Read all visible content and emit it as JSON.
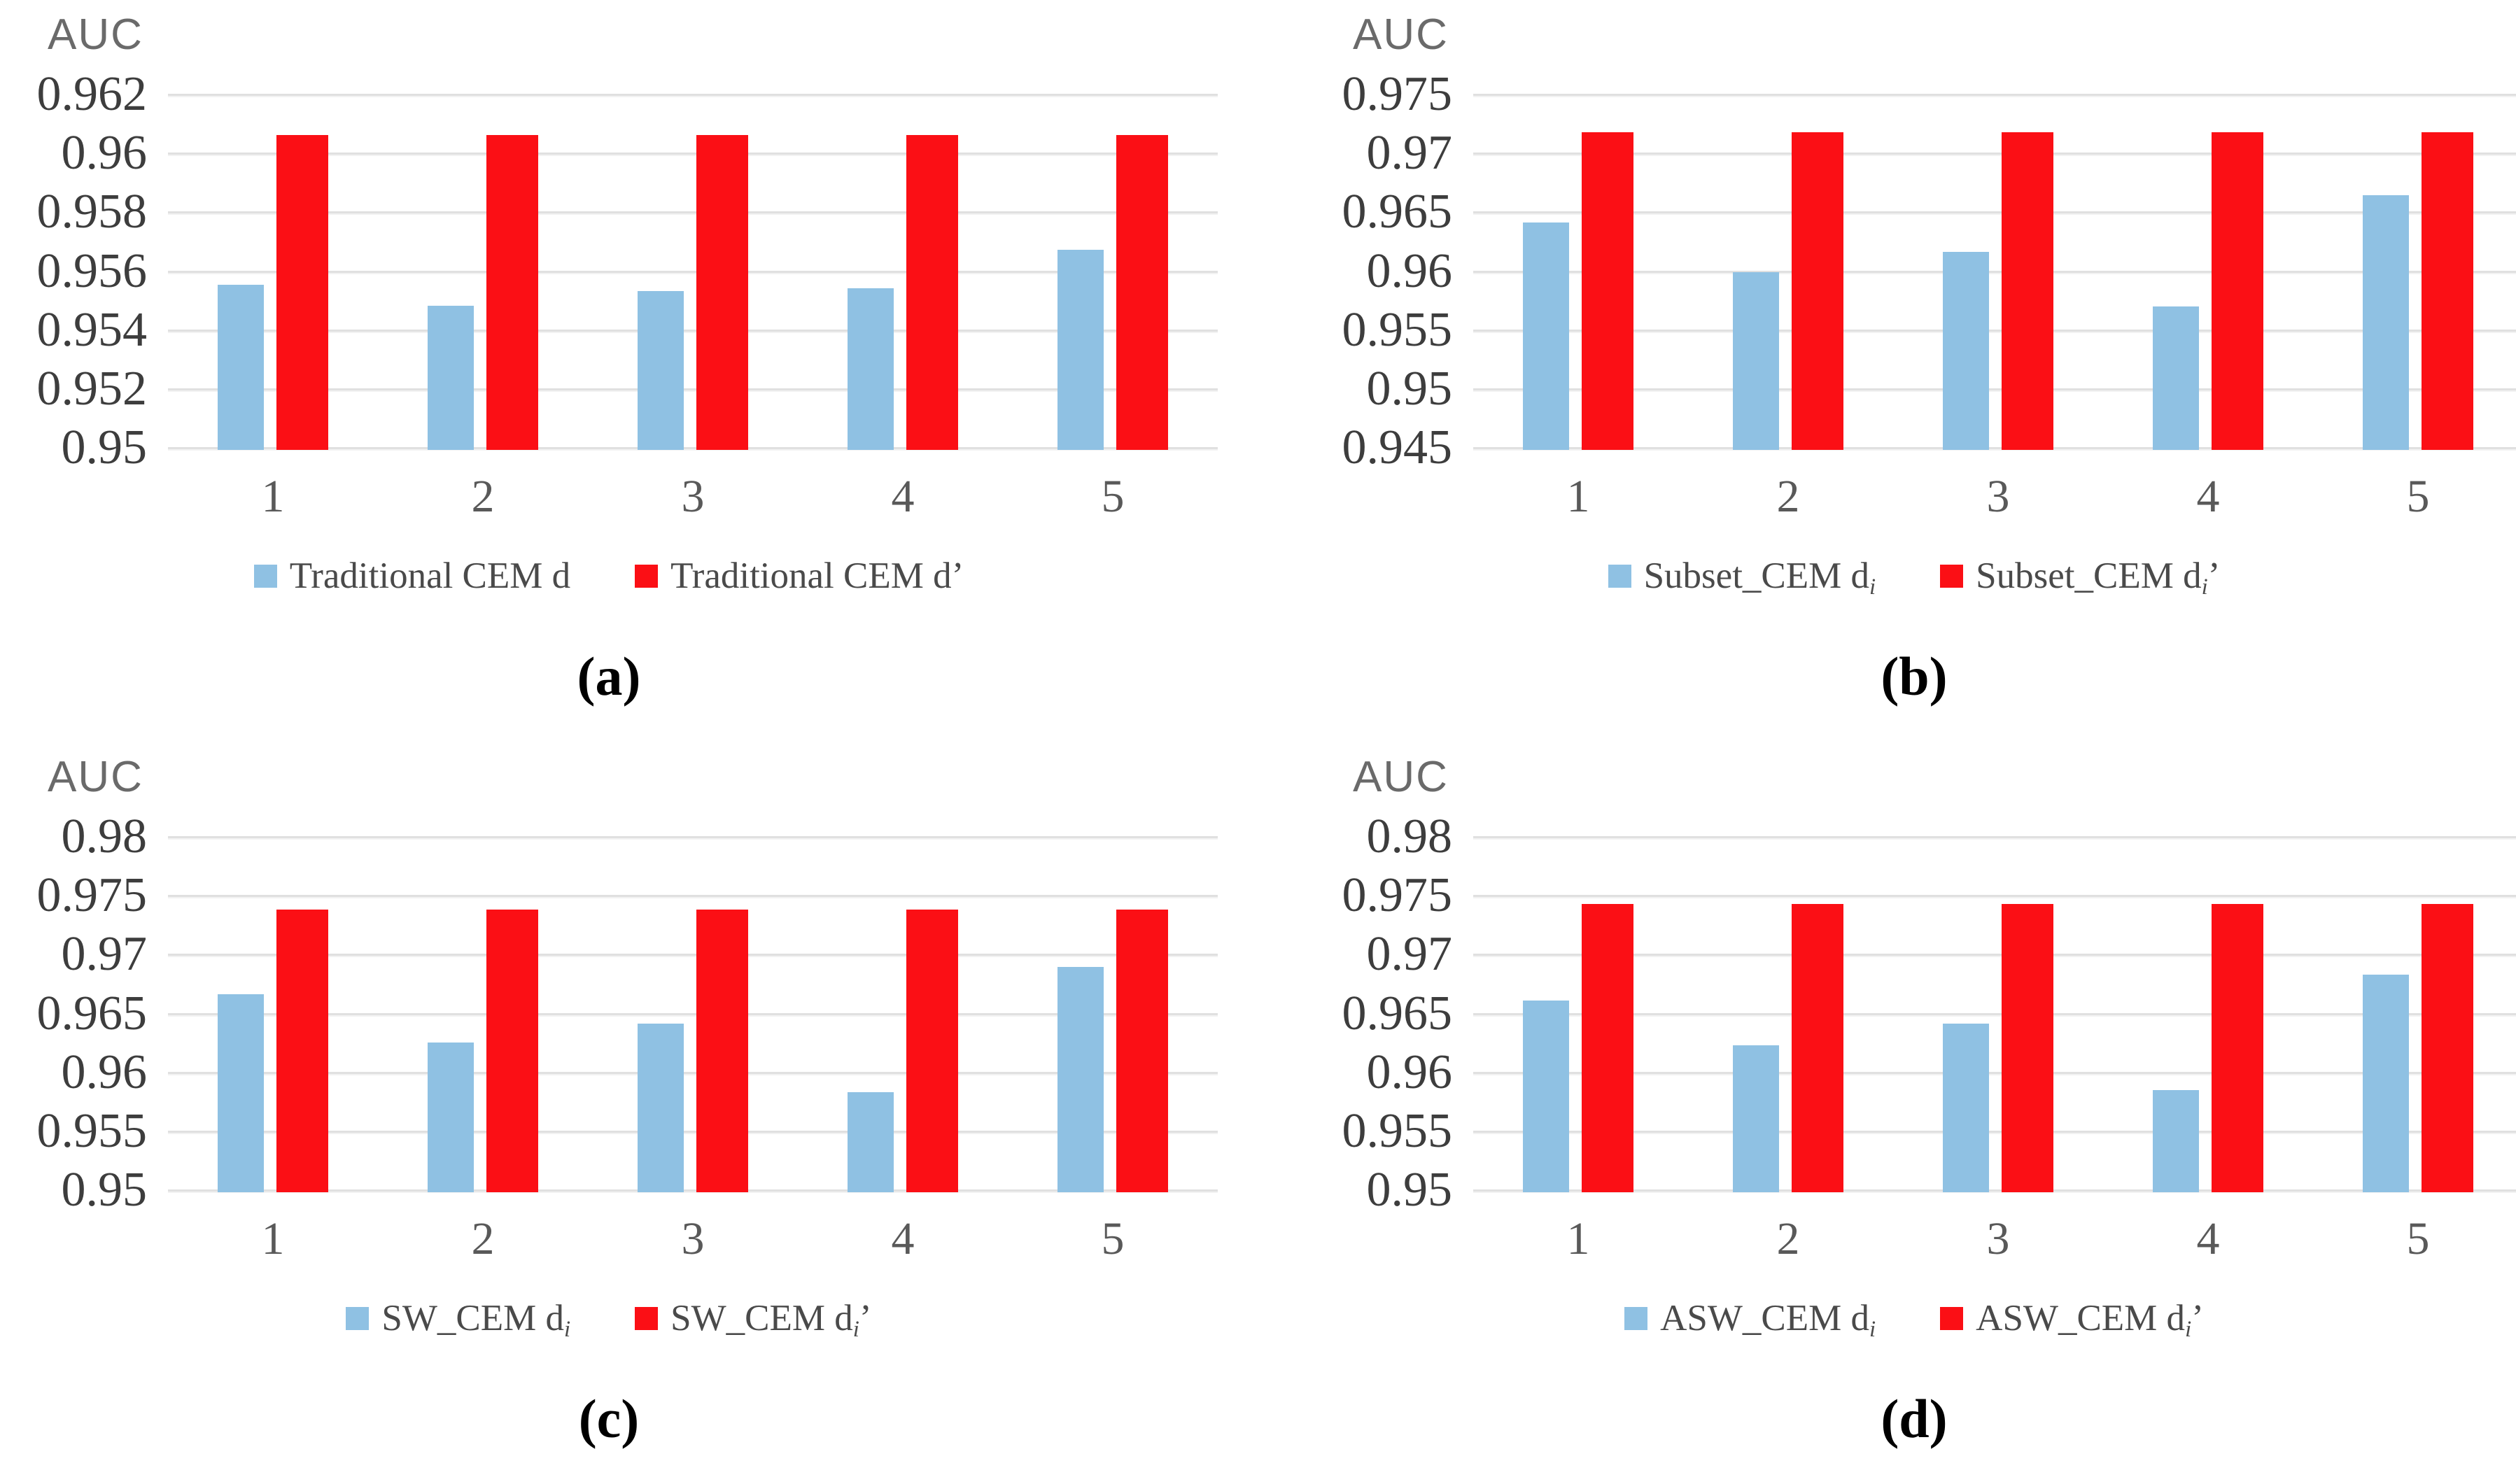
{
  "figure": {
    "background": "#ffffff"
  },
  "colors": {
    "series1": "#8FC1E3",
    "series2": "#FB0F15",
    "gridline": "#E0E0E0",
    "ytick_text": "#3D3D3D",
    "xtick_text": "#595959",
    "legend_text": "#4A4A4A",
    "axis_title_text": "#6A6A6A",
    "caption_text": "#000000"
  },
  "chart_data": [
    {
      "id": "a",
      "type": "bar",
      "title": "",
      "ylabel": "AUC",
      "xlabel": "",
      "caption": "(a)",
      "grid": true,
      "legend_position": "bottom",
      "categories": [
        "1",
        "2",
        "3",
        "4",
        "5"
      ],
      "ylim": [
        0.95,
        0.962
      ],
      "yticks": [
        {
          "value": 0.95,
          "label": "0.95"
        },
        {
          "value": 0.952,
          "label": "0.952"
        },
        {
          "value": 0.954,
          "label": "0.954"
        },
        {
          "value": 0.956,
          "label": "0.956"
        },
        {
          "value": 0.958,
          "label": "0.958"
        },
        {
          "value": 0.96,
          "label": "0.96"
        },
        {
          "value": 0.962,
          "label": "0.962"
        }
      ],
      "series": [
        {
          "name": "Traditional CEM d",
          "name_parts": {
            "main": "Traditional CEM d",
            "sub": "",
            "suffix": ""
          },
          "color_key": "series1",
          "values": [
            0.9556,
            0.9549,
            0.9554,
            0.9555,
            0.9568
          ]
        },
        {
          "name": "Traditional CEM d’",
          "name_parts": {
            "main": "Traditional CEM d",
            "sub": "",
            "suffix": "’"
          },
          "color_key": "series2",
          "values": [
            0.9607,
            0.9607,
            0.9607,
            0.9607,
            0.9607
          ]
        }
      ]
    },
    {
      "id": "b",
      "type": "bar",
      "title": "",
      "ylabel": "AUC",
      "xlabel": "",
      "caption": "(b)",
      "grid": true,
      "legend_position": "bottom",
      "categories": [
        "1",
        "2",
        "3",
        "4",
        "5"
      ],
      "ylim": [
        0.945,
        0.975
      ],
      "yticks": [
        {
          "value": 0.945,
          "label": "0.945"
        },
        {
          "value": 0.95,
          "label": "0.95"
        },
        {
          "value": 0.955,
          "label": "0.955"
        },
        {
          "value": 0.96,
          "label": "0.96"
        },
        {
          "value": 0.965,
          "label": "0.965"
        },
        {
          "value": 0.97,
          "label": "0.97"
        },
        {
          "value": 0.975,
          "label": "0.975"
        }
      ],
      "series": [
        {
          "name": "Subset_CEM di",
          "name_parts": {
            "main": "Subset_CEM d",
            "sub": "i",
            "suffix": ""
          },
          "color_key": "series1",
          "values": [
            0.9643,
            0.9601,
            0.9618,
            0.9572,
            0.9666
          ]
        },
        {
          "name": "Subset_CEM di’",
          "name_parts": {
            "main": "Subset_CEM d",
            "sub": "i",
            "suffix": "’"
          },
          "color_key": "series2",
          "values": [
            0.972,
            0.972,
            0.972,
            0.972,
            0.972
          ]
        }
      ]
    },
    {
      "id": "c",
      "type": "bar",
      "title": "",
      "ylabel": "AUC",
      "xlabel": "",
      "caption": "(c)",
      "grid": true,
      "legend_position": "bottom",
      "categories": [
        "1",
        "2",
        "3",
        "4",
        "5"
      ],
      "ylim": [
        0.95,
        0.98
      ],
      "yticks": [
        {
          "value": 0.95,
          "label": "0.95"
        },
        {
          "value": 0.955,
          "label": "0.955"
        },
        {
          "value": 0.96,
          "label": "0.96"
        },
        {
          "value": 0.965,
          "label": "0.965"
        },
        {
          "value": 0.97,
          "label": "0.97"
        },
        {
          "value": 0.975,
          "label": "0.975"
        },
        {
          "value": 0.98,
          "label": "0.98"
        }
      ],
      "series": [
        {
          "name": "SW_CEM di",
          "name_parts": {
            "main": "SW_CEM d",
            "sub": "i",
            "suffix": ""
          },
          "color_key": "series1",
          "values": [
            0.9668,
            0.9627,
            0.9643,
            0.9585,
            0.9691
          ]
        },
        {
          "name": "SW_CEM di’",
          "name_parts": {
            "main": "SW_CEM d",
            "sub": "i",
            "suffix": "’"
          },
          "color_key": "series2",
          "values": [
            0.974,
            0.974,
            0.974,
            0.974,
            0.974
          ]
        }
      ]
    },
    {
      "id": "d",
      "type": "bar",
      "title": "",
      "ylabel": "AUC",
      "xlabel": "",
      "caption": "(d)",
      "grid": true,
      "legend_position": "bottom",
      "categories": [
        "1",
        "2",
        "3",
        "4",
        "5"
      ],
      "ylim": [
        0.95,
        0.98
      ],
      "yticks": [
        {
          "value": 0.95,
          "label": "0.95"
        },
        {
          "value": 0.955,
          "label": "0.955"
        },
        {
          "value": 0.96,
          "label": "0.96"
        },
        {
          "value": 0.965,
          "label": "0.965"
        },
        {
          "value": 0.97,
          "label": "0.97"
        },
        {
          "value": 0.975,
          "label": "0.975"
        },
        {
          "value": 0.98,
          "label": "0.98"
        }
      ],
      "series": [
        {
          "name": "ASW_CEM di",
          "name_parts": {
            "main": "ASW_CEM d",
            "sub": "i",
            "suffix": ""
          },
          "color_key": "series1",
          "values": [
            0.9663,
            0.9625,
            0.9643,
            0.9587,
            0.9685
          ]
        },
        {
          "name": "ASW_CEM di’",
          "name_parts": {
            "main": "ASW_CEM d",
            "sub": "i",
            "suffix": "’"
          },
          "color_key": "series2",
          "values": [
            0.9745,
            0.9745,
            0.9745,
            0.9745,
            0.9745
          ]
        }
      ]
    }
  ]
}
